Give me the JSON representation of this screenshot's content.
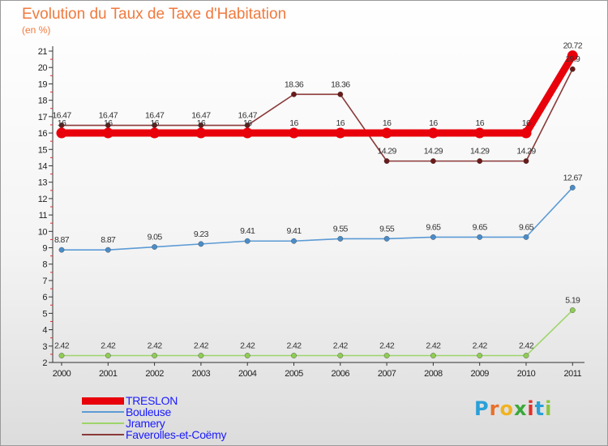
{
  "header": {
    "title": "Evolution du Taux de Taxe d'Habitation",
    "unit": "(en %)"
  },
  "brand": {
    "name": "Proxiti",
    "letters": [
      "P",
      "r",
      "o",
      "x",
      "i",
      "t",
      "i"
    ],
    "letter_colors": [
      "#2aa0d8",
      "#e8702a",
      "#f0b322",
      "#3aa83a",
      "#e0302a",
      "#2aa0d8",
      "#8cc63f"
    ]
  },
  "chart_data": {
    "type": "line",
    "title": "Evolution du Taux de Taxe d'Habitation",
    "ylabel": "(en %)",
    "xlabel": "",
    "ylim": [
      2,
      21
    ],
    "yticks": [
      "2",
      "3",
      "4",
      "5",
      "6",
      "7",
      "8",
      "9",
      "10",
      "11",
      "12",
      "13",
      "14",
      "15",
      "16",
      "17",
      "18",
      "19",
      "20",
      "21"
    ],
    "x": [
      "2000",
      "2001",
      "2002",
      "2003",
      "2004",
      "2005",
      "2006",
      "2007",
      "2008",
      "2009",
      "2010",
      "2011"
    ],
    "grid": false,
    "legend_position": "bottom-left",
    "series": [
      {
        "name": "TRESLON",
        "color": "#e8000b",
        "marker_color": "#e8000b",
        "values": [
          16,
          16,
          16,
          16,
          16,
          16,
          16,
          16,
          16,
          16,
          16,
          20.72
        ],
        "labels": [
          "16",
          "16",
          "16",
          "16",
          "16",
          "16",
          "16",
          "16",
          "16",
          "16",
          "16",
          "20.72"
        ]
      },
      {
        "name": "Bouleuse",
        "color": "#5b9bd5",
        "marker_color": "#4a8cc8",
        "values": [
          8.87,
          8.87,
          9.05,
          9.23,
          9.41,
          9.41,
          9.55,
          9.55,
          9.65,
          9.65,
          9.65,
          12.67
        ],
        "labels": [
          "8.87",
          "8.87",
          "9.05",
          "9.23",
          "9.41",
          "9.41",
          "9.55",
          "9.55",
          "9.65",
          "9.65",
          "9.65",
          "12.67"
        ]
      },
      {
        "name": "Jramery",
        "color": "#9ed56b",
        "marker_color": "#8fcc55",
        "values": [
          2.42,
          2.42,
          2.42,
          2.42,
          2.42,
          2.42,
          2.42,
          2.42,
          2.42,
          2.42,
          2.42,
          5.19
        ],
        "labels": [
          "2.42",
          "2.42",
          "2.42",
          "2.42",
          "2.42",
          "2.42",
          "2.42",
          "2.42",
          "2.42",
          "2.42",
          "2.42",
          "5.19"
        ]
      },
      {
        "name": "Faverolles-et-Coëmy",
        "color": "#8b3a3a",
        "marker_color": "#6a1a1a",
        "values": [
          16.47,
          16.47,
          16.47,
          16.47,
          16.47,
          18.36,
          18.36,
          14.29,
          14.29,
          14.29,
          14.29,
          19.9
        ],
        "labels": [
          "16.47",
          "16.47",
          "16.47",
          "16.47",
          "16.47",
          "18.36",
          "18.36",
          "14.29",
          "14.29",
          "14.29",
          "14.29",
          "19.9"
        ]
      }
    ]
  },
  "legend": {
    "items": [
      {
        "name": "TRESLON",
        "color": "#e8000b",
        "text_color": "#1a1aff"
      },
      {
        "name": "Bouleuse",
        "color": "#5b9bd5",
        "text_color": "#1a1aff"
      },
      {
        "name": "Jramery",
        "color": "#9ed56b",
        "text_color": "#1a1aff"
      },
      {
        "name": "Faverolles-et-Coëmy",
        "color": "#8b3a3a",
        "text_color": "#1a1aff"
      }
    ]
  }
}
